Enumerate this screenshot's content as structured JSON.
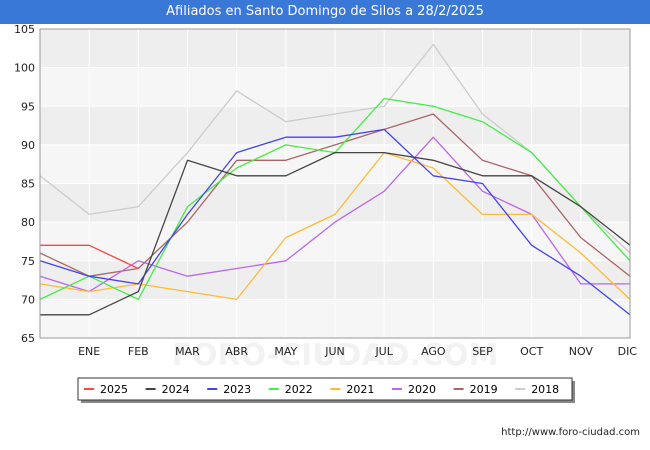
{
  "header": {
    "title": "Afiliados en Santo Domingo de Silos a 28/2/2025"
  },
  "footer": {
    "url": "http://www.foro-ciudad.com"
  },
  "watermark": "FORO-CIUDAD.COM",
  "chart_data": {
    "type": "line",
    "title": "Afiliados en Santo Domingo de Silos a 28/2/2025",
    "xlabel": "",
    "ylabel": "",
    "ylim": [
      65,
      105
    ],
    "yticks": [
      65,
      70,
      75,
      80,
      85,
      90,
      95,
      100,
      105
    ],
    "categories": [
      "",
      "ENE",
      "FEB",
      "MAR",
      "ABR",
      "MAY",
      "JUN",
      "JUL",
      "AGO",
      "SEP",
      "OCT",
      "NOV",
      "DIC"
    ],
    "grid": true,
    "legend_position": "bottom",
    "series": [
      {
        "name": "2025",
        "color": "#ff4444",
        "values": [
          77,
          77,
          74,
          null,
          null,
          null,
          null,
          null,
          null,
          null,
          null,
          null,
          null
        ]
      },
      {
        "name": "2024",
        "color": "#444444",
        "values": [
          68,
          68,
          71,
          88,
          86,
          86,
          89,
          89,
          88,
          86,
          86,
          82,
          77
        ]
      },
      {
        "name": "2023",
        "color": "#4444ee",
        "values": [
          75,
          73,
          72,
          81,
          89,
          91,
          91,
          92,
          86,
          85,
          77,
          73,
          68
        ]
      },
      {
        "name": "2022",
        "color": "#44ee44",
        "values": [
          70,
          73,
          70,
          82,
          87,
          90,
          89,
          96,
          95,
          93,
          89,
          82,
          75
        ]
      },
      {
        "name": "2021",
        "color": "#ffbb33",
        "values": [
          72,
          71,
          72,
          71,
          70,
          78,
          81,
          89,
          87,
          81,
          81,
          76,
          70
        ]
      },
      {
        "name": "2020",
        "color": "#bb66ee",
        "values": [
          73,
          71,
          75,
          73,
          74,
          75,
          80,
          84,
          91,
          84,
          81,
          72,
          72
        ]
      },
      {
        "name": "2019",
        "color": "#aa6666",
        "values": [
          76,
          73,
          74,
          80,
          88,
          88,
          90,
          92,
          94,
          88,
          86,
          78,
          73
        ]
      },
      {
        "name": "2018",
        "color": "#cccccc",
        "values": [
          86,
          81,
          82,
          89,
          97,
          93,
          94,
          95,
          103,
          94,
          89,
          82,
          76
        ]
      }
    ]
  }
}
